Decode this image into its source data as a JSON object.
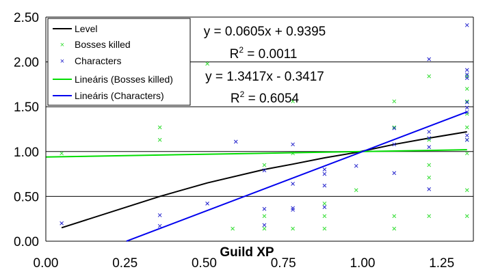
{
  "chart_data": {
    "type": "scatter",
    "title": "",
    "xlabel": "Guild XP",
    "ylabel": "",
    "xlim": [
      0,
      1.35
    ],
    "ylim": [
      0,
      2.5
    ],
    "xticks": [
      "0.00",
      "0.25",
      "0.50",
      "0.75",
      "1.00",
      "1.25"
    ],
    "yticks": [
      "0.00",
      "0.50",
      "1.00",
      "1.50",
      "2.00",
      "2.50"
    ],
    "grid": "horizontal",
    "legend": "top-left",
    "colors": {
      "level": "#000000",
      "bosses": "#33dd33",
      "characters": "#2222cc",
      "trend_bosses": "#00dd00",
      "trend_characters": "#0000ee",
      "grid": "#000000"
    },
    "series": [
      {
        "name": "Level",
        "kind": "line",
        "points": [
          [
            0.05,
            0.15
          ],
          [
            0.36,
            0.5
          ],
          [
            0.51,
            0.65
          ],
          [
            0.69,
            0.8
          ],
          [
            0.78,
            0.86
          ],
          [
            0.88,
            0.93
          ],
          [
            0.98,
            0.99
          ],
          [
            1.1,
            1.08
          ],
          [
            1.21,
            1.15
          ],
          [
            1.33,
            1.22
          ]
        ]
      },
      {
        "name": "Bosses killed",
        "kind": "scatter",
        "points": [
          [
            0.05,
            0.98
          ],
          [
            0.36,
            1.27
          ],
          [
            0.36,
            1.13
          ],
          [
            0.51,
            1.98
          ],
          [
            0.59,
            0.14
          ],
          [
            0.69,
            0.85
          ],
          [
            0.69,
            0.28
          ],
          [
            0.69,
            0.14
          ],
          [
            0.78,
            1.56
          ],
          [
            0.78,
            0.14
          ],
          [
            0.78,
            0.98
          ],
          [
            0.88,
            0.42
          ],
          [
            0.88,
            0.28
          ],
          [
            0.88,
            0.14
          ],
          [
            0.98,
            0.57
          ],
          [
            1.1,
            1.56
          ],
          [
            1.1,
            1.27
          ],
          [
            1.1,
            0.28
          ],
          [
            1.1,
            0.14
          ],
          [
            1.21,
            1.84
          ],
          [
            1.21,
            1.13
          ],
          [
            1.21,
            0.85
          ],
          [
            1.21,
            0.71
          ],
          [
            1.21,
            0.28
          ],
          [
            1.33,
            1.84
          ],
          [
            1.33,
            1.7
          ],
          [
            1.33,
            1.56
          ],
          [
            1.33,
            1.42
          ],
          [
            1.33,
            1.27
          ],
          [
            1.33,
            1.13
          ],
          [
            1.33,
            0.98
          ],
          [
            1.33,
            0.57
          ],
          [
            1.33,
            0.28
          ]
        ]
      },
      {
        "name": "Characters",
        "kind": "scatter",
        "points": [
          [
            0.05,
            0.2
          ],
          [
            0.36,
            0.29
          ],
          [
            0.36,
            0.17
          ],
          [
            0.51,
            0.42
          ],
          [
            0.6,
            1.11
          ],
          [
            0.69,
            0.79
          ],
          [
            0.69,
            0.36
          ],
          [
            0.69,
            0.18
          ],
          [
            0.78,
            1.08
          ],
          [
            0.78,
            0.64
          ],
          [
            0.78,
            0.37
          ],
          [
            0.78,
            0.35
          ],
          [
            0.88,
            0.8
          ],
          [
            0.88,
            0.75
          ],
          [
            0.88,
            0.62
          ],
          [
            0.88,
            0.38
          ],
          [
            0.98,
            0.84
          ],
          [
            1.1,
            1.26
          ],
          [
            1.1,
            1.08
          ],
          [
            1.1,
            0.76
          ],
          [
            1.21,
            2.03
          ],
          [
            1.21,
            1.22
          ],
          [
            1.21,
            1.15
          ],
          [
            1.21,
            1.05
          ],
          [
            1.21,
            0.58
          ],
          [
            1.33,
            2.41
          ],
          [
            1.33,
            1.91
          ],
          [
            1.33,
            1.86
          ],
          [
            1.33,
            1.82
          ],
          [
            1.33,
            1.55
          ],
          [
            1.33,
            1.49
          ],
          [
            1.33,
            1.44
          ],
          [
            1.33,
            1.18
          ],
          [
            1.33,
            1.13
          ]
        ]
      },
      {
        "name": "Lineáris (Bosses killed)",
        "kind": "trendline",
        "slope": 0.0605,
        "intercept": 0.9395,
        "x_range": [
          0.0,
          1.33
        ]
      },
      {
        "name": "Lineáris (Characters)",
        "kind": "trendline",
        "slope": 1.3417,
        "intercept": -0.3417,
        "x_range": [
          0.2547,
          1.33
        ]
      }
    ],
    "annotations": {
      "bosses_eq": "y = 0.0605x + 0.9395",
      "bosses_r2_prefix": "R",
      "bosses_r2_sup": "2",
      "bosses_r2_value": " = 0.0011",
      "chars_eq": "y = 1.3417x - 0.3417",
      "chars_r2_prefix": "R",
      "chars_r2_sup": "2",
      "chars_r2_value": " = 0.6054"
    }
  }
}
